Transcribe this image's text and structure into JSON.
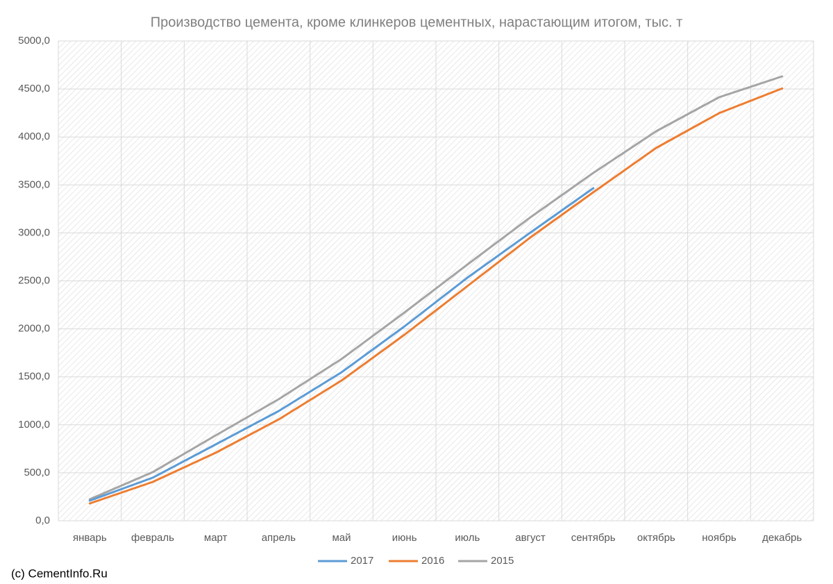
{
  "chart_data": {
    "type": "line",
    "title": "Производство цемента, кроме клинкеров цементных, нарастающим итогом, тыс. т",
    "categories": [
      "январь",
      "февраль",
      "март",
      "апрель",
      "май",
      "июнь",
      "июль",
      "август",
      "сентябрь",
      "октябрь",
      "ноябрь",
      "декабрь"
    ],
    "series": [
      {
        "name": "2017",
        "color": "#5b9bd5",
        "values": [
          210,
          449,
          796,
          1143,
          1548,
          2026,
          2533,
          3003,
          3466,
          null,
          null,
          null
        ]
      },
      {
        "name": "2016",
        "color": "#ed7d31",
        "values": [
          181,
          405,
          709,
          1056,
          1462,
          1939,
          2446,
          2952,
          3423,
          3886,
          4248,
          4505
        ]
      },
      {
        "name": "2015",
        "color": "#a5a5a5",
        "values": [
          224,
          507,
          890,
          1266,
          1686,
          2171,
          2670,
          3162,
          3625,
          4059,
          4414,
          4631
        ]
      }
    ],
    "ylim": [
      0,
      5000
    ],
    "yticks": [
      {
        "value": 0,
        "label": "0,0"
      },
      {
        "value": 500,
        "label": "500,0"
      },
      {
        "value": 1000,
        "label": "1000,0"
      },
      {
        "value": 1500,
        "label": "1500,0"
      },
      {
        "value": 2000,
        "label": "2000,0"
      },
      {
        "value": 2500,
        "label": "2500,0"
      },
      {
        "value": 3000,
        "label": "3000,0"
      },
      {
        "value": 3500,
        "label": "3500,0"
      },
      {
        "value": 4000,
        "label": "4000,0"
      },
      {
        "value": 4500,
        "label": "4500,0"
      },
      {
        "value": 5000,
        "label": "5000,0"
      }
    ],
    "grid": true,
    "legend": "bottom"
  },
  "footer": "(c) CementInfo.Ru"
}
